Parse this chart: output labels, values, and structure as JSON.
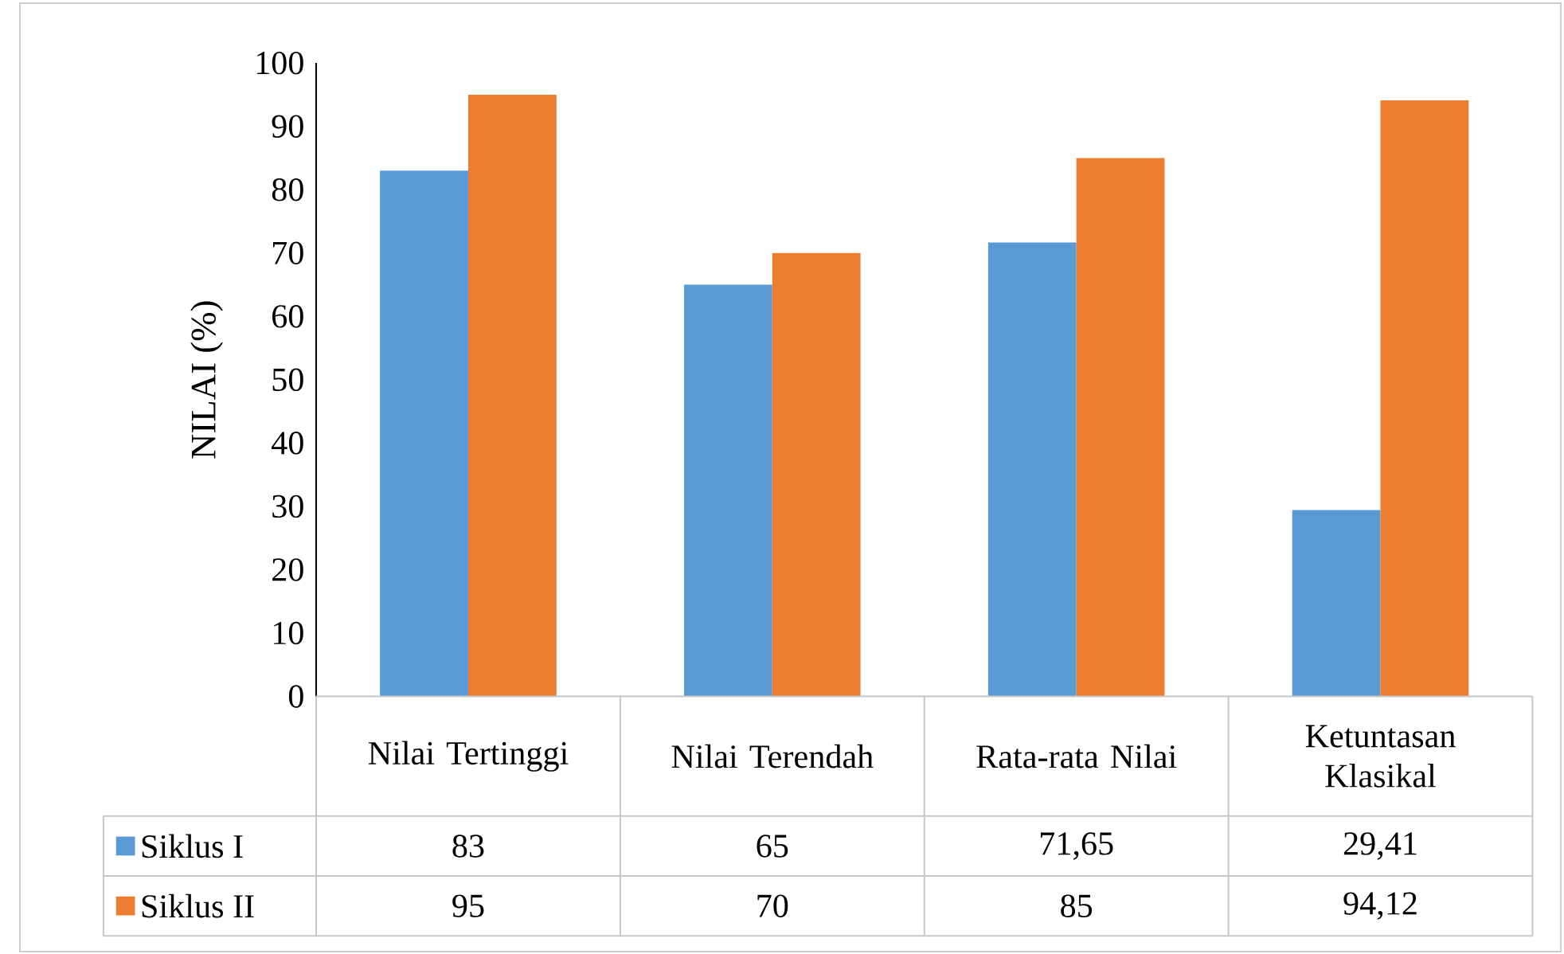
{
  "chart_data": {
    "type": "bar",
    "ylabel": "NILAI (%)",
    "categories": [
      "Nilai Tertinggi",
      "Nilai Terendah",
      "Rata-rata Nilai",
      "Ketuntasan Klasikal"
    ],
    "series": [
      {
        "name": "Siklus I",
        "color": "#5b9bd5",
        "values": [
          83,
          65,
          71.65,
          29.41
        ],
        "value_labels": [
          "83",
          "65",
          "71,65",
          "29,41"
        ]
      },
      {
        "name": "Siklus II",
        "color": "#ed7d31",
        "values": [
          95,
          70,
          85,
          94.12
        ],
        "value_labels": [
          "95",
          "70",
          "85",
          "94,12"
        ]
      }
    ],
    "ylim": [
      0,
      100
    ],
    "yticks": [
      0,
      10,
      20,
      30,
      40,
      50,
      60,
      70,
      80,
      90,
      100
    ],
    "legend": "bottom"
  }
}
